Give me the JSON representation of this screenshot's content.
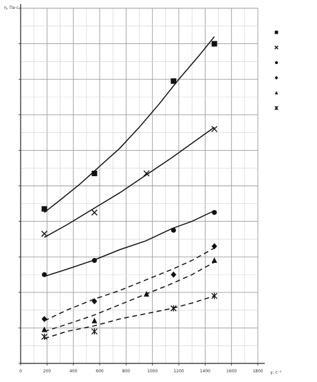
{
  "chart_data": {
    "type": "scatter",
    "ylabel": "η, Па·с",
    "xlabel": "γ, с⁻¹",
    "xlim": [
      0,
      1800
    ],
    "ylim": [
      0,
      20
    ],
    "x_ticks": [
      0,
      200,
      400,
      600,
      800,
      1000,
      1200,
      1400,
      1600,
      1800
    ],
    "x_tick_labels": [
      "0",
      "200",
      "400",
      "600",
      "800",
      "1000",
      "1200",
      "1400",
      "1600",
      "1800"
    ],
    "y_ticks": [
      0,
      2,
      4,
      6,
      8,
      10,
      12,
      14,
      16,
      18,
      20
    ],
    "y_tick_labels": [
      "",
      "",
      "",
      "",
      "",
      "",
      "",
      "",
      "",
      "",
      ""
    ],
    "grid": true,
    "legend_position": "right",
    "series": [
      {
        "name": "",
        "marker": "square",
        "dash": "solid",
        "x": [
          180,
          560,
          1160,
          1470
        ],
        "y": [
          8.7,
          10.7,
          15.9,
          18.0
        ],
        "fit": [
          [
            180,
            8.5
          ],
          [
            300,
            9.2
          ],
          [
            450,
            10.1
          ],
          [
            600,
            11.1
          ],
          [
            750,
            12.1
          ],
          [
            900,
            13.3
          ],
          [
            1050,
            14.6
          ],
          [
            1200,
            16.0
          ],
          [
            1350,
            17.3
          ],
          [
            1470,
            18.4
          ]
        ]
      },
      {
        "name": "",
        "marker": "x",
        "dash": "solid",
        "x": [
          180,
          560,
          955,
          1470
        ],
        "y": [
          7.3,
          8.5,
          10.7,
          13.2
        ],
        "fit": [
          [
            180,
            7.1
          ],
          [
            350,
            7.8
          ],
          [
            550,
            8.7
          ],
          [
            750,
            9.6
          ],
          [
            950,
            10.6
          ],
          [
            1150,
            11.6
          ],
          [
            1300,
            12.4
          ],
          [
            1470,
            13.3
          ]
        ]
      },
      {
        "name": "",
        "marker": "circle",
        "dash": "solid",
        "x": [
          180,
          560,
          1160,
          1470
        ],
        "y": [
          5.0,
          5.8,
          7.5,
          8.5
        ],
        "fit": [
          [
            180,
            4.9
          ],
          [
            350,
            5.3
          ],
          [
            550,
            5.8
          ],
          [
            750,
            6.4
          ],
          [
            950,
            6.9
          ],
          [
            1150,
            7.6
          ],
          [
            1300,
            8.0
          ],
          [
            1470,
            8.6
          ]
        ]
      },
      {
        "name": "",
        "marker": "diamond",
        "dash": "dashed",
        "x": [
          180,
          560,
          1160,
          1470
        ],
        "y": [
          2.5,
          3.5,
          5.0,
          6.6
        ],
        "fit": [
          [
            180,
            2.4
          ],
          [
            350,
            3.0
          ],
          [
            550,
            3.6
          ],
          [
            750,
            4.1
          ],
          [
            950,
            4.7
          ],
          [
            1150,
            5.3
          ],
          [
            1300,
            5.8
          ],
          [
            1470,
            6.5
          ]
        ]
      },
      {
        "name": "",
        "marker": "triangle",
        "dash": "dashed",
        "x": [
          180,
          560,
          955,
          1470
        ],
        "y": [
          1.9,
          2.4,
          3.9,
          5.8
        ],
        "fit": [
          [
            180,
            1.8
          ],
          [
            350,
            2.2
          ],
          [
            550,
            2.7
          ],
          [
            750,
            3.3
          ],
          [
            950,
            3.9
          ],
          [
            1150,
            4.5
          ],
          [
            1300,
            5.0
          ],
          [
            1470,
            5.7
          ]
        ]
      },
      {
        "name": "",
        "marker": "asterisk",
        "dash": "dashed",
        "x": [
          180,
          560,
          1160,
          1470
        ],
        "y": [
          1.5,
          1.8,
          3.1,
          3.8
        ],
        "fit": [
          [
            180,
            1.4
          ],
          [
            350,
            1.8
          ],
          [
            550,
            2.1
          ],
          [
            750,
            2.5
          ],
          [
            950,
            2.8
          ],
          [
            1150,
            3.1
          ],
          [
            1300,
            3.4
          ],
          [
            1470,
            3.8
          ]
        ]
      }
    ]
  }
}
